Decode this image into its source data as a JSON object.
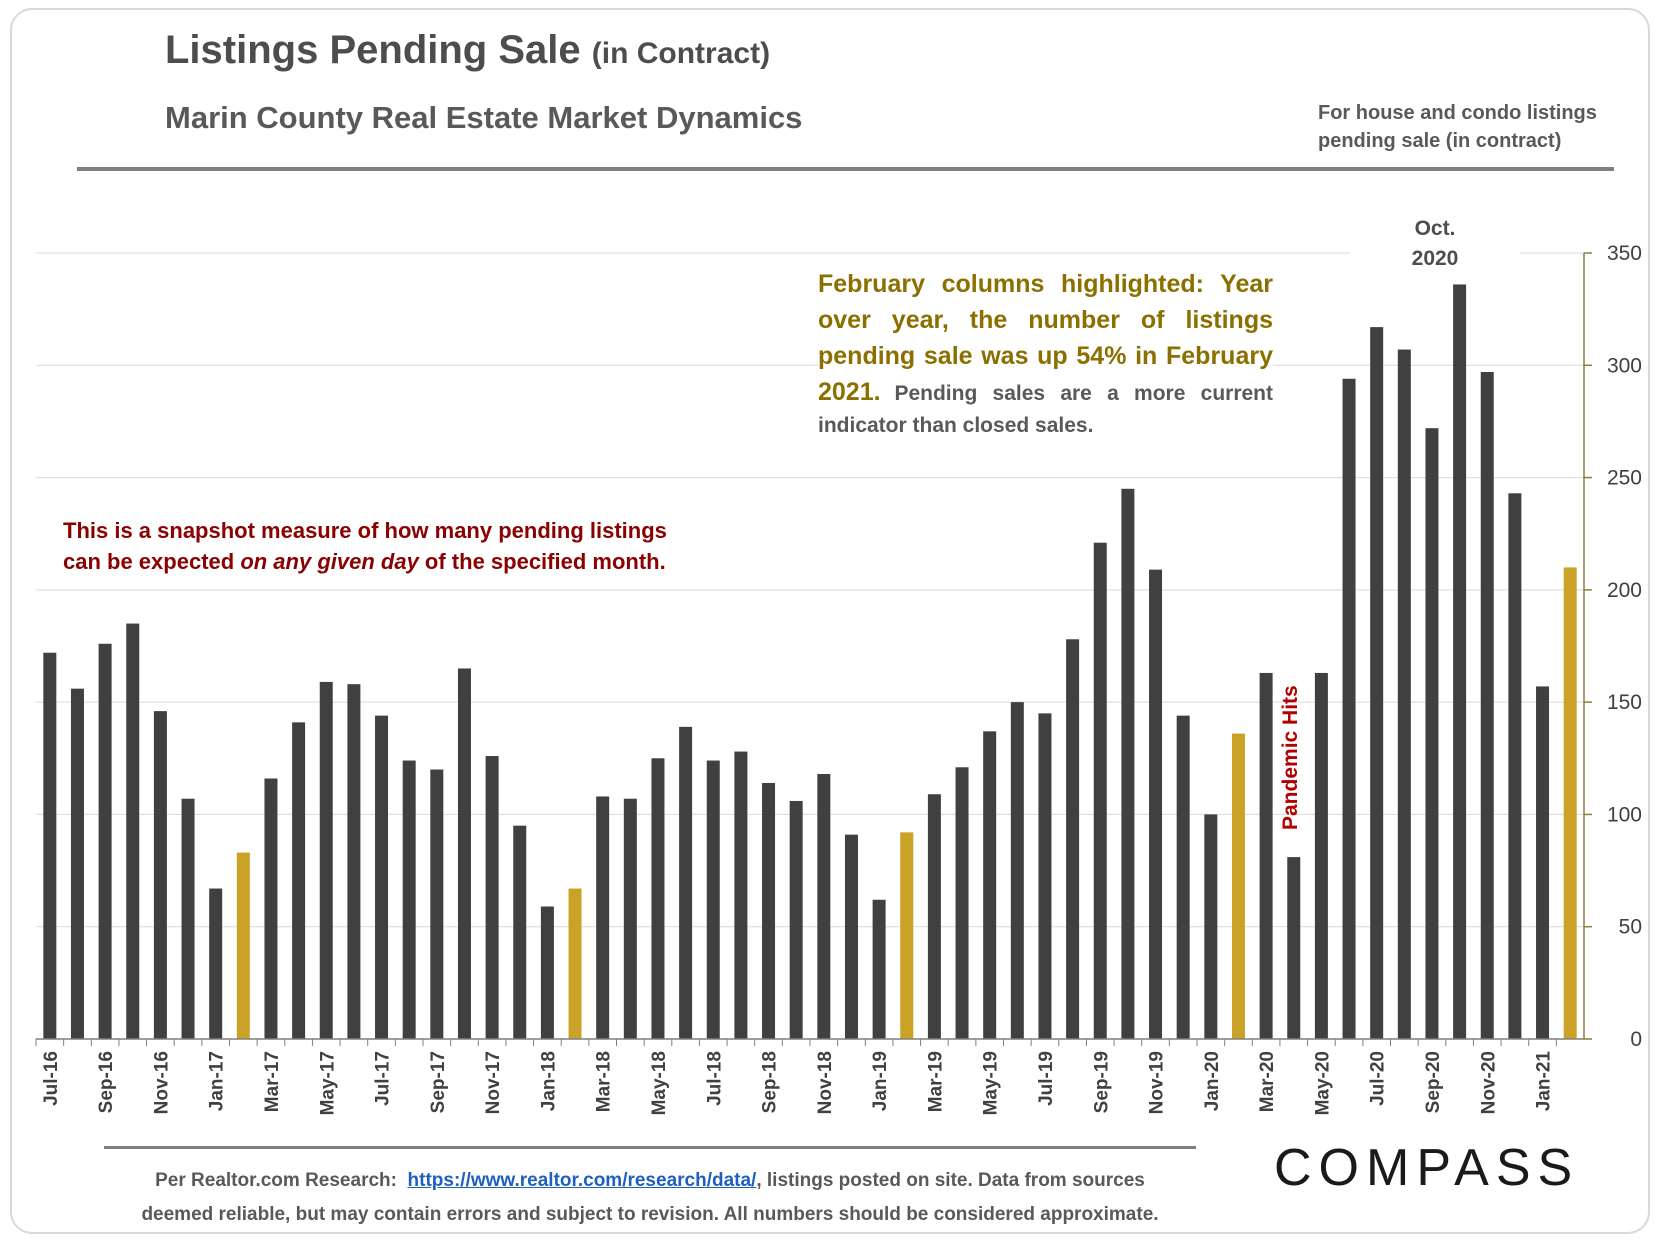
{
  "header": {
    "title": "Listings Pending Sale",
    "title_suffix": "(in Contract)",
    "subtitle": "Marin County Real Estate Market Dynamics",
    "note_line1": "For house and condo listings",
    "note_line2": "pending sale (in contract)"
  },
  "annotations": {
    "snapshot_line1": "This is a snapshot measure of how many pending listings",
    "snapshot_line2_a": "can be expected ",
    "snapshot_line2_em": "on any given day",
    "snapshot_line2_b": " of the specified month.",
    "february_highlight": "February columns highlighted: Year over year, the number of listings pending sale was up 54% in February 2021.",
    "february_note": "Pending sales are a more current indicator than closed sales.",
    "oct_label_line1": "Oct.",
    "oct_label_line2": "2020",
    "pandemic": "Pandemic Hits"
  },
  "footer": {
    "source_prefix": "Per Realtor.com Research:",
    "source_link": "https://www.realtor.com/research/data/",
    "source_rest": ", listings posted on site. Data from sources",
    "source_line2": "deemed reliable, but may contain errors and subject to revision. All numbers should be considered approximate.",
    "logo": "COMPASS"
  },
  "colors": {
    "bar": "#404040",
    "highlight": "#c9a227",
    "grid": "#d9d9d9",
    "axis": "#8b7d3a"
  },
  "chart_data": {
    "type": "bar",
    "ylim": [
      0,
      350
    ],
    "yticks": [
      0,
      50,
      100,
      150,
      200,
      250,
      300,
      350
    ],
    "y_axis_side": "right",
    "grid": true,
    "categories": [
      "Jul-16",
      "Aug-16",
      "Sep-16",
      "Oct-16",
      "Nov-16",
      "Dec-16",
      "Jan-17",
      "Feb-17",
      "Mar-17",
      "Apr-17",
      "May-17",
      "Jun-17",
      "Jul-17",
      "Aug-17",
      "Sep-17",
      "Oct-17",
      "Nov-17",
      "Dec-17",
      "Jan-18",
      "Feb-18",
      "Mar-18",
      "Apr-18",
      "May-18",
      "Jun-18",
      "Jul-18",
      "Aug-18",
      "Sep-18",
      "Oct-18",
      "Nov-18",
      "Dec-18",
      "Jan-19",
      "Feb-19",
      "Mar-19",
      "Apr-19",
      "May-19",
      "Jun-19",
      "Jul-19",
      "Aug-19",
      "Sep-19",
      "Oct-19",
      "Nov-19",
      "Dec-19",
      "Jan-20",
      "Feb-20",
      "Mar-20",
      "Apr-20",
      "May-20",
      "Jun-20",
      "Jul-20",
      "Aug-20",
      "Sep-20",
      "Oct-20",
      "Nov-20",
      "Dec-20",
      "Jan-21",
      "Feb-21"
    ],
    "tick_labels": [
      "Jul-16",
      "",
      "Sep-16",
      "",
      "Nov-16",
      "",
      "Jan-17",
      "",
      "Mar-17",
      "",
      "May-17",
      "",
      "Jul-17",
      "",
      "Sep-17",
      "",
      "Nov-17",
      "",
      "Jan-18",
      "",
      "Mar-18",
      "",
      "May-18",
      "",
      "Jul-18",
      "",
      "Sep-18",
      "",
      "Nov-18",
      "",
      "Jan-19",
      "",
      "Mar-19",
      "",
      "May-19",
      "",
      "Jul-19",
      "",
      "Sep-19",
      "",
      "Nov-19",
      "",
      "Jan-20",
      "",
      "Mar-20",
      "",
      "May-20",
      "",
      "Jul-20",
      "",
      "Sep-20",
      "",
      "Nov-20",
      "",
      "Jan-21",
      ""
    ],
    "values": [
      172,
      156,
      176,
      185,
      146,
      107,
      67,
      83,
      116,
      141,
      159,
      158,
      144,
      124,
      120,
      165,
      126,
      95,
      59,
      67,
      108,
      107,
      125,
      139,
      124,
      128,
      114,
      106,
      118,
      91,
      62,
      92,
      109,
      121,
      137,
      150,
      145,
      178,
      221,
      245,
      209,
      144,
      100,
      136,
      163,
      81,
      163,
      294,
      317,
      307,
      272,
      336,
      297,
      243,
      157,
      210
    ],
    "highlighted": [
      "Feb-17",
      "Feb-18",
      "Feb-19",
      "Feb-20",
      "Feb-21"
    ]
  }
}
